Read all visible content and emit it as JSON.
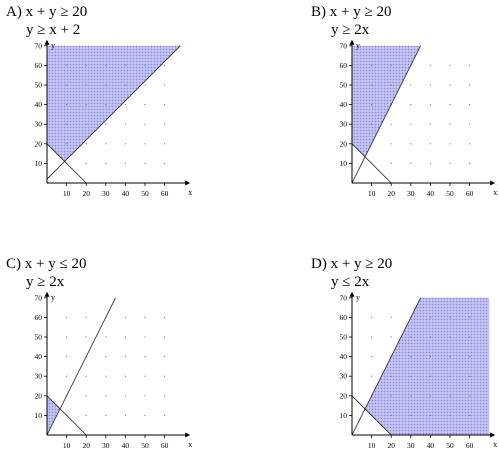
{
  "panels": [
    {
      "label": "A)",
      "ineq1": "x + y ≥ 20",
      "ineq2": "y ≥ x + 2"
    },
    {
      "label": "B)",
      "ineq1": "x + y ≥ 20",
      "ineq2": "y ≥ 2x"
    },
    {
      "label": "C)",
      "ineq1": "x + y ≤ 20",
      "ineq2": "y ≥ 2x"
    },
    {
      "label": "D)",
      "ineq1": "x + y ≥ 20",
      "ineq2": "y ≤ 2x"
    }
  ],
  "chart_data": [
    {
      "type": "area",
      "xlabel": "x",
      "ylabel": "y",
      "xlim": [
        0,
        70
      ],
      "ylim": [
        0,
        70
      ],
      "xticks": [
        10,
        20,
        30,
        40,
        50,
        60
      ],
      "yticks": [
        10,
        20,
        30,
        40,
        50,
        60,
        70
      ],
      "region": [
        [
          0,
          70
        ],
        [
          0,
          20
        ],
        [
          9,
          11
        ],
        [
          68,
          70
        ]
      ],
      "lines": [
        {
          "x": [
            0,
            20
          ],
          "y": [
            20,
            0
          ]
        },
        {
          "x": [
            0,
            68
          ],
          "y": [
            2,
            70
          ]
        }
      ],
      "fill_color": "#8a8ae6"
    },
    {
      "type": "area",
      "xlabel": "x",
      "ylabel": "y",
      "xlim": [
        0,
        70
      ],
      "ylim": [
        0,
        70
      ],
      "xticks": [
        10,
        20,
        30,
        40,
        50,
        60
      ],
      "yticks": [
        10,
        20,
        30,
        40,
        50,
        60,
        70
      ],
      "region": [
        [
          0,
          70
        ],
        [
          0,
          20
        ],
        [
          6.67,
          13.33
        ],
        [
          35,
          70
        ]
      ],
      "lines": [
        {
          "x": [
            0,
            20
          ],
          "y": [
            20,
            0
          ]
        },
        {
          "x": [
            0,
            35
          ],
          "y": [
            0,
            70
          ]
        }
      ],
      "fill_color": "#8a8ae6"
    },
    {
      "type": "area",
      "xlabel": "x",
      "ylabel": "y",
      "xlim": [
        0,
        70
      ],
      "ylim": [
        0,
        70
      ],
      "xticks": [
        10,
        20,
        30,
        40,
        50,
        60
      ],
      "yticks": [
        10,
        20,
        30,
        40,
        50,
        60,
        70
      ],
      "region": [
        [
          0,
          20
        ],
        [
          0,
          0
        ],
        [
          6.67,
          13.33
        ]
      ],
      "lines": [
        {
          "x": [
            0,
            20
          ],
          "y": [
            20,
            0
          ]
        },
        {
          "x": [
            0,
            35
          ],
          "y": [
            0,
            70
          ]
        }
      ],
      "fill_color": "#8a8ae6"
    },
    {
      "type": "area",
      "xlabel": "x",
      "ylabel": "y",
      "xlim": [
        0,
        70
      ],
      "ylim": [
        0,
        70
      ],
      "xticks": [
        10,
        20,
        30,
        40,
        50,
        60
      ],
      "yticks": [
        10,
        20,
        30,
        40,
        50,
        60,
        70
      ],
      "region": [
        [
          6.67,
          13.33
        ],
        [
          20,
          0
        ],
        [
          70,
          0
        ],
        [
          70,
          70
        ],
        [
          35,
          70
        ]
      ],
      "lines": [
        {
          "x": [
            0,
            20
          ],
          "y": [
            20,
            0
          ]
        },
        {
          "x": [
            0,
            35
          ],
          "y": [
            0,
            70
          ]
        }
      ],
      "fill_color": "#8a8ae6"
    }
  ]
}
